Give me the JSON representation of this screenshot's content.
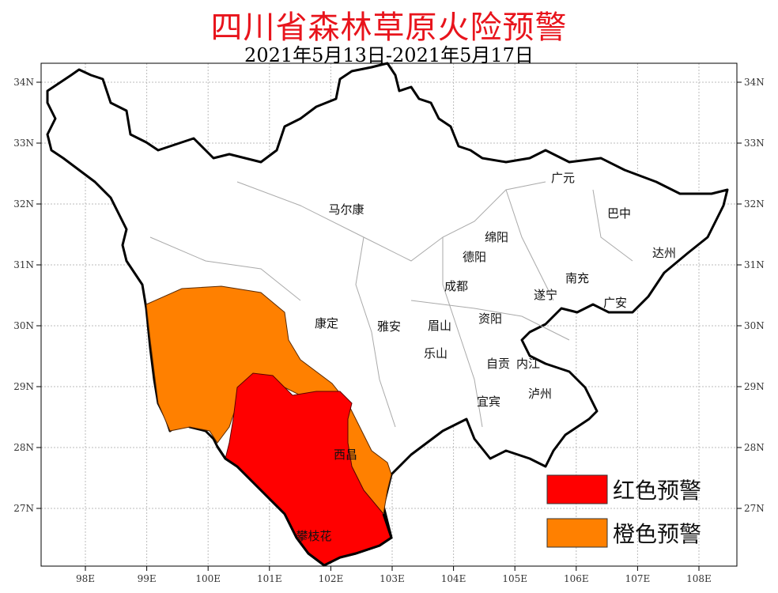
{
  "title": "四川省森林草原火险预警",
  "subtitle": "2021年5月13日-2021年5月17日",
  "colors": {
    "title": "#e8141c",
    "red_warning": "#ff0000",
    "orange_warning": "#ff8000",
    "border": "#000000",
    "grid": "#bbbbbb"
  },
  "axes": {
    "lon_ticks": [
      "98E",
      "99E",
      "100E",
      "101E",
      "102E",
      "103E",
      "104E",
      "105E",
      "106E",
      "107E",
      "108E"
    ],
    "lat_ticks": [
      "34N",
      "33N",
      "32N",
      "31N",
      "30N",
      "29N",
      "28N",
      "27N"
    ]
  },
  "cities": [
    "马尔康",
    "广元",
    "巴中",
    "绵阳",
    "德阳",
    "达州",
    "南充",
    "遂宁",
    "广安",
    "成都",
    "康定",
    "雅安",
    "眉山",
    "资阳",
    "乐山",
    "自贡",
    "内江",
    "泸州",
    "宜宾",
    "西昌",
    "攀枝花"
  ],
  "legend": [
    {
      "label": "红色预警",
      "color": "#ff0000"
    },
    {
      "label": "橙色预警",
      "color": "#ff8000"
    }
  ]
}
